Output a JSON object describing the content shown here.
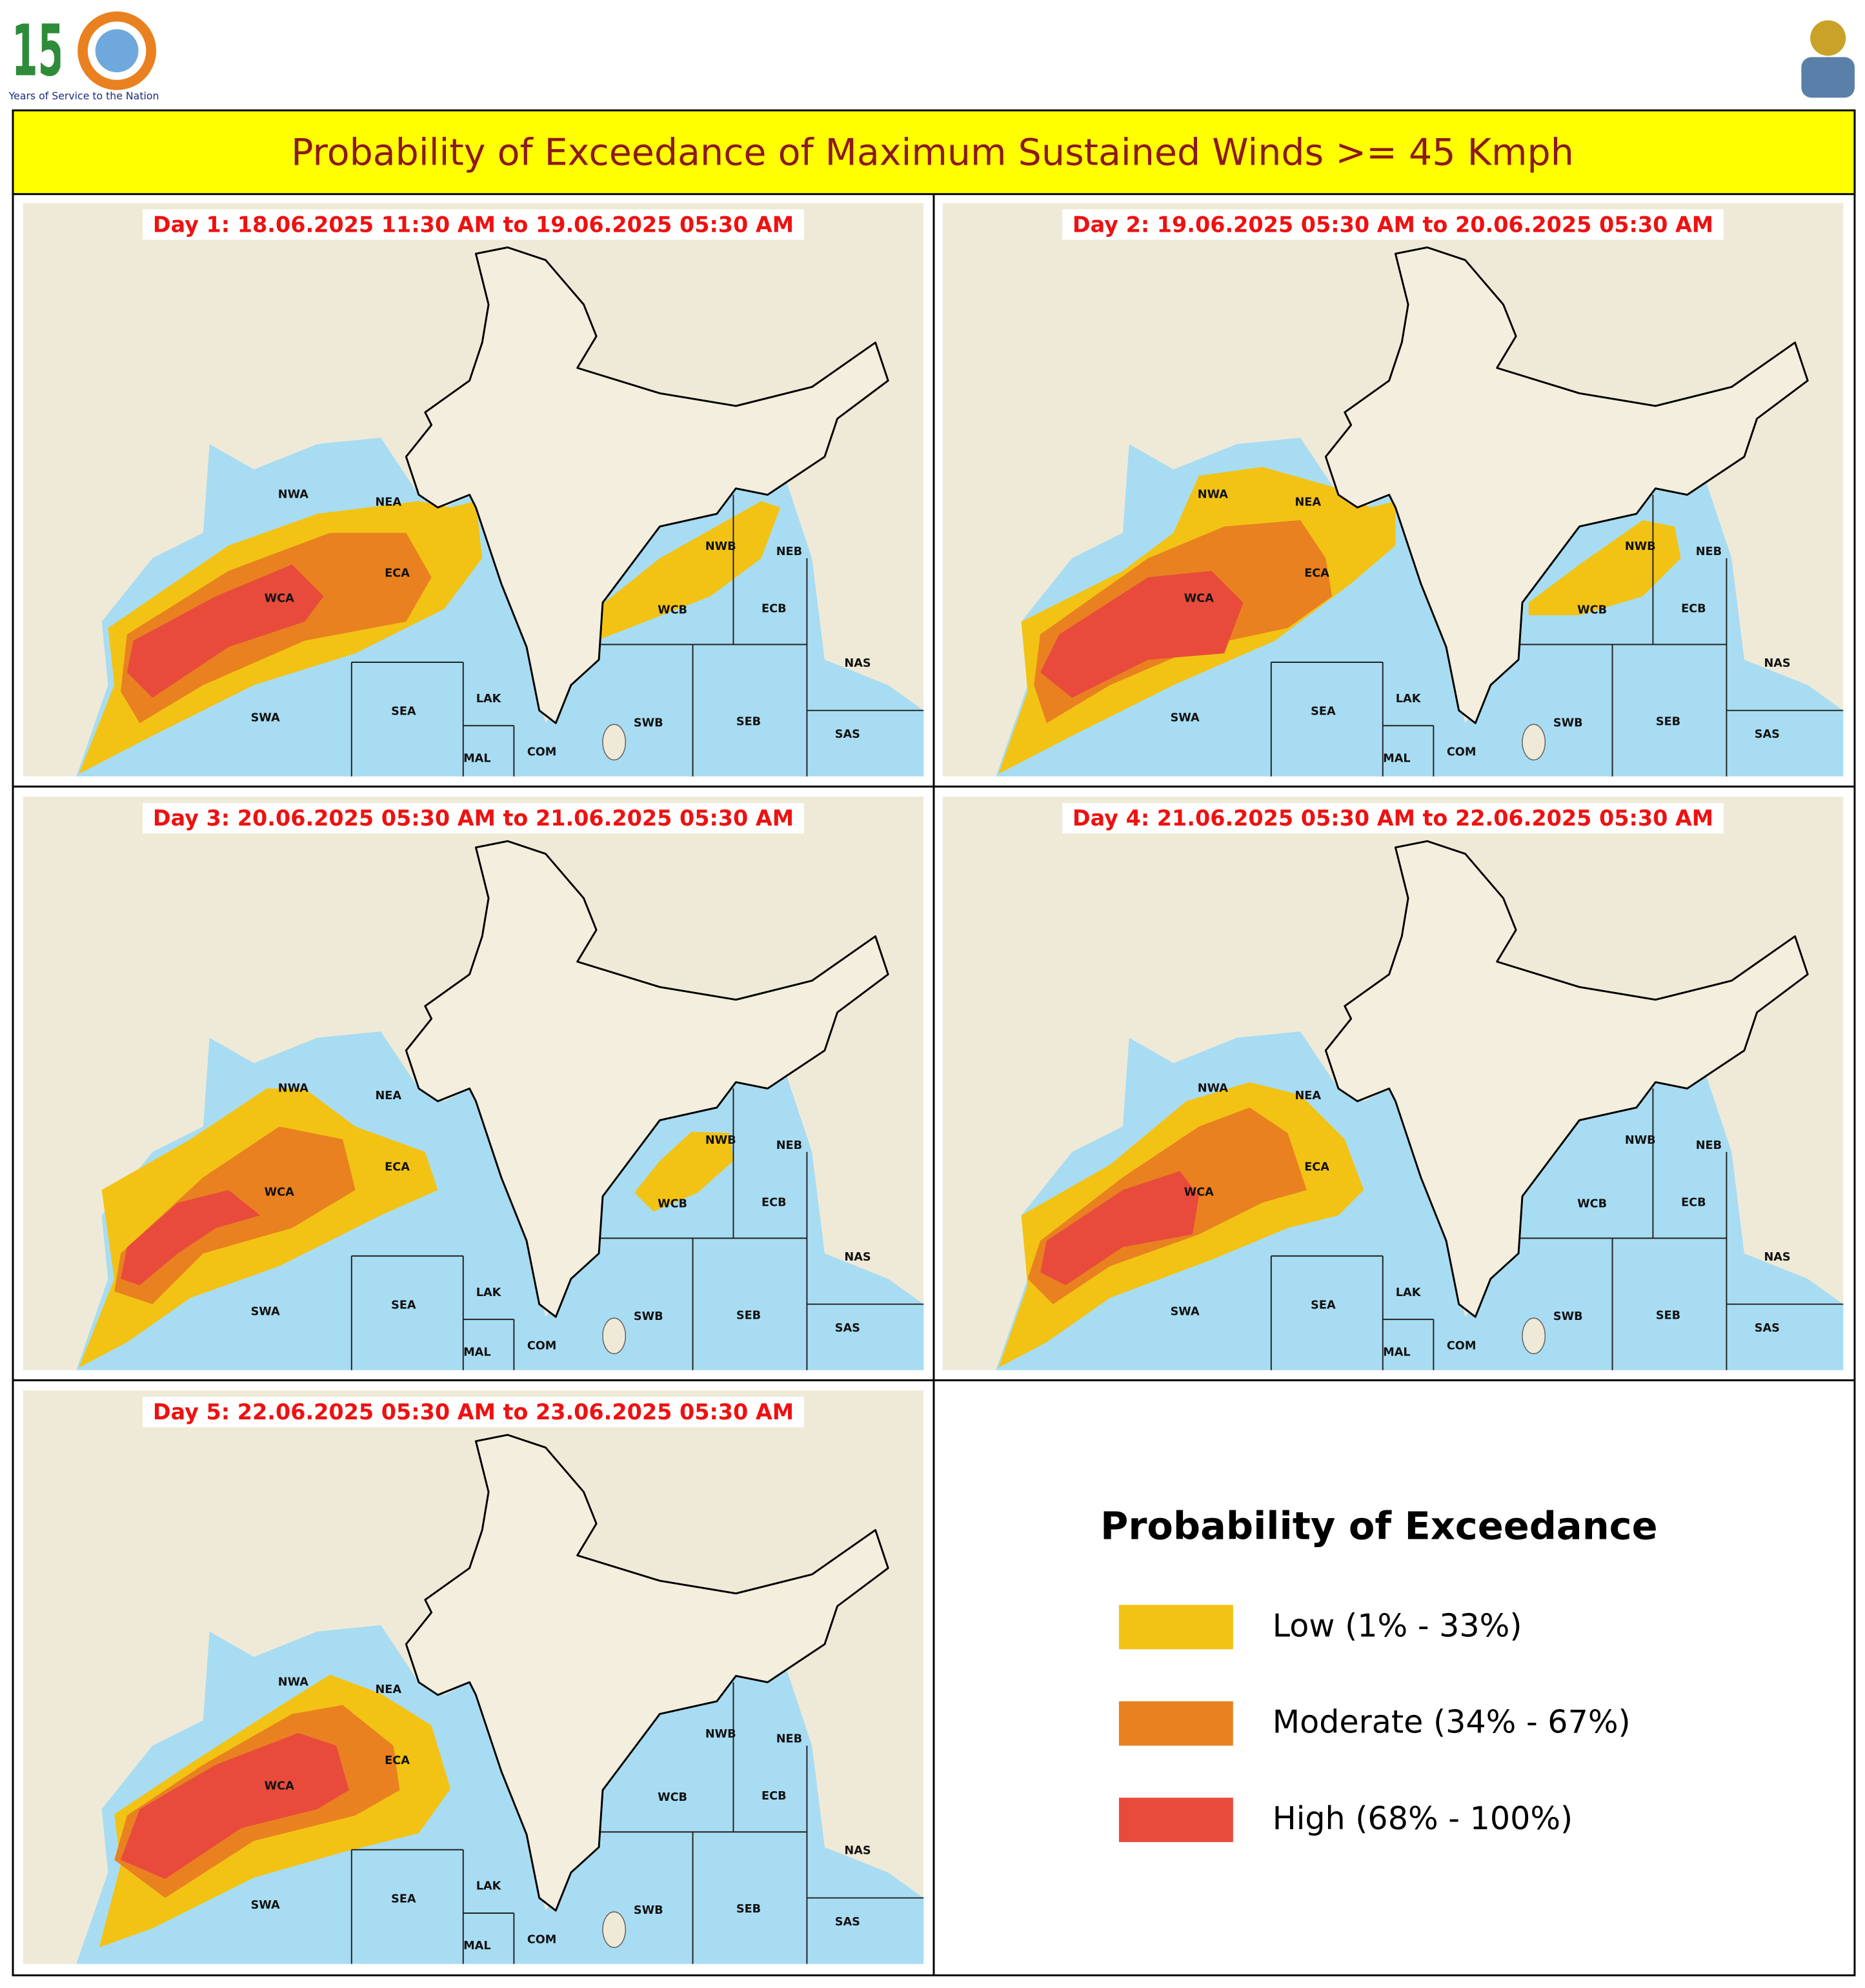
{
  "header": {
    "logo_number": "150",
    "logo_tagline": "Years of Service to the Nation",
    "title": "Probability of Exceedance of Maximum Sustained Winds >= 45 Kmph"
  },
  "panels": [
    {
      "title": "Day 1: 18.06.2025 11:30 AM to 19.06.2025 05:30 AM"
    },
    {
      "title": "Day 2: 19.06.2025 05:30 AM to 20.06.2025 05:30 AM"
    },
    {
      "title": "Day 3: 20.06.2025 05:30 AM to 21.06.2025 05:30 AM"
    },
    {
      "title": "Day 4: 21.06.2025 05:30 AM to 22.06.2025 05:30 AM"
    },
    {
      "title": "Day 5: 22.06.2025 05:30 AM to 23.06.2025 05:30 AM"
    }
  ],
  "regions": [
    "NWA",
    "NEA",
    "WCA",
    "ECA",
    "SWA",
    "SEA",
    "LAK",
    "MAL",
    "COM",
    "SWB",
    "SEB",
    "NWB",
    "NEB",
    "WCB",
    "ECB",
    "NAS",
    "SAS"
  ],
  "legend": {
    "title": "Probability of Exceedance",
    "items": [
      {
        "label": "Low (1% - 33%)",
        "color": "#f2c314"
      },
      {
        "label": "Moderate (34% - 67%)",
        "color": "#e98120"
      },
      {
        "label": "High (68% - 100%)",
        "color": "#e84b3c"
      }
    ]
  }
}
